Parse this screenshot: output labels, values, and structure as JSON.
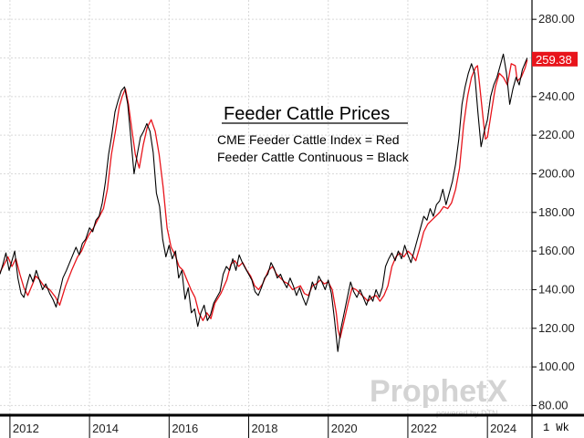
{
  "chart_data": {
    "type": "line",
    "title": "Feeder Cattle Prices",
    "legend": [
      "CME Feeder Cattle Index = Red",
      "Feeder Cattle Continuous = Black"
    ],
    "last_price_label": "259.38",
    "period_label": "1 Wk",
    "y_axis_side": "right",
    "ylim": [
      75,
      290
    ],
    "y_ticks": [
      "80.00",
      "100.00",
      "120.00",
      "140.00",
      "160.00",
      "180.00",
      "200.00",
      "220.00",
      "240.00",
      "260.00",
      "280.00"
    ],
    "x_ticks": [
      "2012",
      "2014",
      "2016",
      "2018",
      "2020",
      "2022",
      "2024"
    ],
    "grid": true,
    "colors": {
      "index": "#e8141b",
      "continuous": "#000000",
      "price_tag": "#e8141b"
    },
    "series": [
      {
        "name": "CME Feeder Cattle Index",
        "color": "#e8141b",
        "points": [
          [
            2011.75,
            149
          ],
          [
            2011.85,
            153
          ],
          [
            2011.95,
            157
          ],
          [
            2012.05,
            152
          ],
          [
            2012.15,
            156
          ],
          [
            2012.25,
            148
          ],
          [
            2012.35,
            141
          ],
          [
            2012.45,
            137
          ],
          [
            2012.55,
            142
          ],
          [
            2012.65,
            147
          ],
          [
            2012.75,
            145
          ],
          [
            2012.85,
            142
          ],
          [
            2013.0,
            140
          ],
          [
            2013.15,
            136
          ],
          [
            2013.25,
            132
          ],
          [
            2013.4,
            142
          ],
          [
            2013.55,
            150
          ],
          [
            2013.7,
            157
          ],
          [
            2013.8,
            160
          ],
          [
            2013.9,
            165
          ],
          [
            2014.0,
            169
          ],
          [
            2014.1,
            172
          ],
          [
            2014.2,
            176
          ],
          [
            2014.35,
            182
          ],
          [
            2014.45,
            192
          ],
          [
            2014.55,
            210
          ],
          [
            2014.65,
            222
          ],
          [
            2014.75,
            235
          ],
          [
            2014.82,
            240
          ],
          [
            2014.9,
            244
          ],
          [
            2014.98,
            236
          ],
          [
            2015.05,
            225
          ],
          [
            2015.15,
            210
          ],
          [
            2015.25,
            203
          ],
          [
            2015.35,
            215
          ],
          [
            2015.45,
            224
          ],
          [
            2015.55,
            228
          ],
          [
            2015.65,
            222
          ],
          [
            2015.75,
            210
          ],
          [
            2015.85,
            193
          ],
          [
            2015.95,
            172
          ],
          [
            2016.05,
            162
          ],
          [
            2016.15,
            158
          ],
          [
            2016.25,
            152
          ],
          [
            2016.35,
            150
          ],
          [
            2016.45,
            145
          ],
          [
            2016.55,
            140
          ],
          [
            2016.65,
            136
          ],
          [
            2016.75,
            128
          ],
          [
            2016.85,
            124
          ],
          [
            2016.95,
            128
          ],
          [
            2017.05,
            125
          ],
          [
            2017.15,
            133
          ],
          [
            2017.3,
            138
          ],
          [
            2017.45,
            145
          ],
          [
            2017.55,
            153
          ],
          [
            2017.65,
            155
          ],
          [
            2017.75,
            152
          ],
          [
            2017.85,
            154
          ],
          [
            2017.95,
            150
          ],
          [
            2018.05,
            147
          ],
          [
            2018.15,
            142
          ],
          [
            2018.25,
            140
          ],
          [
            2018.35,
            143
          ],
          [
            2018.5,
            150
          ],
          [
            2018.6,
            152
          ],
          [
            2018.7,
            148
          ],
          [
            2018.8,
            146
          ],
          [
            2018.9,
            144
          ],
          [
            2019.0,
            143
          ],
          [
            2019.1,
            140
          ],
          [
            2019.2,
            141
          ],
          [
            2019.3,
            142
          ],
          [
            2019.4,
            138
          ],
          [
            2019.5,
            137
          ],
          [
            2019.6,
            142
          ],
          [
            2019.7,
            143
          ],
          [
            2019.8,
            145
          ],
          [
            2019.9,
            143
          ],
          [
            2020.0,
            144
          ],
          [
            2020.1,
            140
          ],
          [
            2020.2,
            128
          ],
          [
            2020.25,
            119
          ],
          [
            2020.3,
            115
          ],
          [
            2020.4,
            124
          ],
          [
            2020.5,
            133
          ],
          [
            2020.6,
            141
          ],
          [
            2020.7,
            140
          ],
          [
            2020.8,
            138
          ],
          [
            2020.9,
            136
          ],
          [
            2021.0,
            134
          ],
          [
            2021.1,
            136
          ],
          [
            2021.2,
            137
          ],
          [
            2021.3,
            134
          ],
          [
            2021.4,
            137
          ],
          [
            2021.5,
            142
          ],
          [
            2021.6,
            152
          ],
          [
            2021.7,
            157
          ],
          [
            2021.8,
            159
          ],
          [
            2021.9,
            157
          ],
          [
            2022.0,
            160
          ],
          [
            2022.1,
            158
          ],
          [
            2022.2,
            155
          ],
          [
            2022.3,
            162
          ],
          [
            2022.4,
            170
          ],
          [
            2022.5,
            174
          ],
          [
            2022.6,
            176
          ],
          [
            2022.7,
            178
          ],
          [
            2022.8,
            180
          ],
          [
            2022.9,
            183
          ],
          [
            2023.0,
            182
          ],
          [
            2023.1,
            185
          ],
          [
            2023.2,
            192
          ],
          [
            2023.3,
            203
          ],
          [
            2023.4,
            225
          ],
          [
            2023.5,
            240
          ],
          [
            2023.6,
            250
          ],
          [
            2023.7,
            255
          ],
          [
            2023.75,
            256
          ],
          [
            2023.8,
            247
          ],
          [
            2023.9,
            227
          ],
          [
            2023.95,
            218
          ],
          [
            2024.0,
            219
          ],
          [
            2024.1,
            232
          ],
          [
            2024.2,
            245
          ],
          [
            2024.3,
            252
          ],
          [
            2024.4,
            250
          ],
          [
            2024.5,
            246
          ],
          [
            2024.6,
            257
          ],
          [
            2024.7,
            256
          ],
          [
            2024.75,
            248
          ],
          [
            2024.85,
            250
          ],
          [
            2024.95,
            255
          ],
          [
            2025.0,
            259
          ]
        ]
      },
      {
        "name": "Feeder Cattle Continuous",
        "color": "#000000",
        "points": [
          [
            2011.75,
            148
          ],
          [
            2011.82,
            153
          ],
          [
            2011.9,
            159
          ],
          [
            2011.98,
            150
          ],
          [
            2012.05,
            155
          ],
          [
            2012.12,
            160
          ],
          [
            2012.2,
            146
          ],
          [
            2012.28,
            138
          ],
          [
            2012.35,
            136
          ],
          [
            2012.42,
            142
          ],
          [
            2012.5,
            148
          ],
          [
            2012.58,
            144
          ],
          [
            2012.66,
            150
          ],
          [
            2012.74,
            145
          ],
          [
            2012.82,
            140
          ],
          [
            2012.9,
            143
          ],
          [
            2013.0,
            138
          ],
          [
            2013.08,
            135
          ],
          [
            2013.16,
            131
          ],
          [
            2013.25,
            139
          ],
          [
            2013.33,
            146
          ],
          [
            2013.42,
            150
          ],
          [
            2013.5,
            154
          ],
          [
            2013.58,
            158
          ],
          [
            2013.66,
            162
          ],
          [
            2013.74,
            158
          ],
          [
            2013.82,
            164
          ],
          [
            2013.9,
            166
          ],
          [
            2014.0,
            172
          ],
          [
            2014.08,
            170
          ],
          [
            2014.16,
            176
          ],
          [
            2014.24,
            178
          ],
          [
            2014.32,
            185
          ],
          [
            2014.4,
            196
          ],
          [
            2014.48,
            210
          ],
          [
            2014.56,
            220
          ],
          [
            2014.64,
            232
          ],
          [
            2014.72,
            238
          ],
          [
            2014.8,
            243
          ],
          [
            2014.88,
            245
          ],
          [
            2014.96,
            236
          ],
          [
            2015.04,
            218
          ],
          [
            2015.12,
            200
          ],
          [
            2015.2,
            210
          ],
          [
            2015.28,
            219
          ],
          [
            2015.36,
            222
          ],
          [
            2015.44,
            226
          ],
          [
            2015.52,
            222
          ],
          [
            2015.6,
            211
          ],
          [
            2015.68,
            190
          ],
          [
            2015.76,
            183
          ],
          [
            2015.84,
            166
          ],
          [
            2015.92,
            157
          ],
          [
            2016.0,
            163
          ],
          [
            2016.08,
            156
          ],
          [
            2016.16,
            160
          ],
          [
            2016.24,
            146
          ],
          [
            2016.32,
            150
          ],
          [
            2016.4,
            135
          ],
          [
            2016.48,
            141
          ],
          [
            2016.56,
            128
          ],
          [
            2016.64,
            130
          ],
          [
            2016.72,
            121
          ],
          [
            2016.8,
            128
          ],
          [
            2016.88,
            132
          ],
          [
            2016.96,
            124
          ],
          [
            2017.04,
            127
          ],
          [
            2017.12,
            133
          ],
          [
            2017.2,
            136
          ],
          [
            2017.28,
            139
          ],
          [
            2017.36,
            148
          ],
          [
            2017.44,
            152
          ],
          [
            2017.52,
            150
          ],
          [
            2017.6,
            156
          ],
          [
            2017.68,
            150
          ],
          [
            2017.76,
            158
          ],
          [
            2017.84,
            154
          ],
          [
            2017.92,
            151
          ],
          [
            2018.0,
            148
          ],
          [
            2018.08,
            145
          ],
          [
            2018.16,
            139
          ],
          [
            2018.24,
            137
          ],
          [
            2018.32,
            141
          ],
          [
            2018.4,
            146
          ],
          [
            2018.48,
            148
          ],
          [
            2018.56,
            154
          ],
          [
            2018.64,
            151
          ],
          [
            2018.72,
            146
          ],
          [
            2018.8,
            148
          ],
          [
            2018.88,
            144
          ],
          [
            2018.96,
            141
          ],
          [
            2019.04,
            146
          ],
          [
            2019.12,
            142
          ],
          [
            2019.2,
            137
          ],
          [
            2019.28,
            141
          ],
          [
            2019.36,
            136
          ],
          [
            2019.44,
            132
          ],
          [
            2019.52,
            137
          ],
          [
            2019.6,
            144
          ],
          [
            2019.68,
            140
          ],
          [
            2019.76,
            147
          ],
          [
            2019.84,
            144
          ],
          [
            2019.92,
            140
          ],
          [
            2020.0,
            145
          ],
          [
            2020.08,
            138
          ],
          [
            2020.16,
            124
          ],
          [
            2020.24,
            108
          ],
          [
            2020.32,
            120
          ],
          [
            2020.4,
            128
          ],
          [
            2020.48,
            136
          ],
          [
            2020.56,
            144
          ],
          [
            2020.64,
            139
          ],
          [
            2020.72,
            136
          ],
          [
            2020.8,
            140
          ],
          [
            2020.88,
            136
          ],
          [
            2020.96,
            132
          ],
          [
            2021.04,
            137
          ],
          [
            2021.12,
            134
          ],
          [
            2021.2,
            140
          ],
          [
            2021.28,
            136
          ],
          [
            2021.36,
            141
          ],
          [
            2021.44,
            152
          ],
          [
            2021.52,
            156
          ],
          [
            2021.6,
            159
          ],
          [
            2021.68,
            155
          ],
          [
            2021.76,
            160
          ],
          [
            2021.84,
            156
          ],
          [
            2021.92,
            163
          ],
          [
            2022.0,
            158
          ],
          [
            2022.08,
            154
          ],
          [
            2022.16,
            160
          ],
          [
            2022.24,
            166
          ],
          [
            2022.32,
            172
          ],
          [
            2022.4,
            178
          ],
          [
            2022.48,
            176
          ],
          [
            2022.56,
            182
          ],
          [
            2022.64,
            178
          ],
          [
            2022.72,
            184
          ],
          [
            2022.8,
            186
          ],
          [
            2022.88,
            192
          ],
          [
            2022.96,
            184
          ],
          [
            2023.04,
            190
          ],
          [
            2023.12,
            196
          ],
          [
            2023.2,
            205
          ],
          [
            2023.28,
            218
          ],
          [
            2023.36,
            236
          ],
          [
            2023.44,
            245
          ],
          [
            2023.52,
            252
          ],
          [
            2023.6,
            257
          ],
          [
            2023.68,
            252
          ],
          [
            2023.76,
            232
          ],
          [
            2023.84,
            214
          ],
          [
            2023.92,
            222
          ],
          [
            2024.0,
            228
          ],
          [
            2024.08,
            240
          ],
          [
            2024.16,
            246
          ],
          [
            2024.24,
            250
          ],
          [
            2024.32,
            256
          ],
          [
            2024.4,
            262
          ],
          [
            2024.48,
            252
          ],
          [
            2024.56,
            236
          ],
          [
            2024.64,
            244
          ],
          [
            2024.72,
            250
          ],
          [
            2024.8,
            246
          ],
          [
            2024.88,
            254
          ],
          [
            2024.96,
            258
          ],
          [
            2025.0,
            260
          ]
        ]
      }
    ]
  },
  "watermark": {
    "brand": "ProphetX",
    "sub": "powered by DTN"
  }
}
